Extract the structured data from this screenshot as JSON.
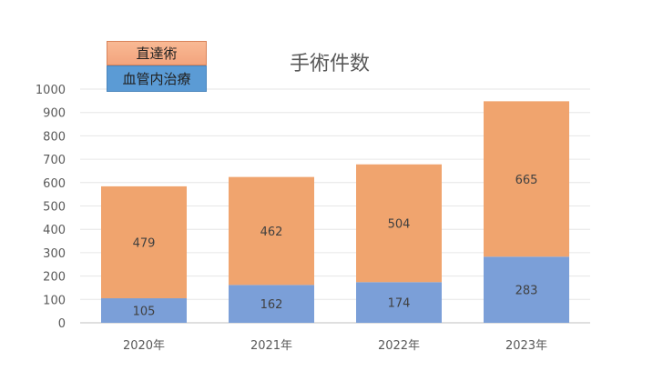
{
  "chart_data": {
    "type": "bar",
    "stacked": true,
    "title": "手術件数",
    "xlabel": "",
    "ylabel": "",
    "categories": [
      "2020年",
      "2021年",
      "2022年",
      "2023年"
    ],
    "series": [
      {
        "name": "血管内治療",
        "values": [
          105,
          162,
          174,
          283
        ],
        "color": "#7b9fd8"
      },
      {
        "name": "直達術",
        "values": [
          479,
          462,
          504,
          665
        ],
        "color": "#f0a46e"
      }
    ],
    "ylim": [
      0,
      1000
    ],
    "yticks": [
      0,
      100,
      200,
      300,
      400,
      500,
      600,
      700,
      800,
      900,
      1000
    ],
    "grid": true,
    "legend_position": "top-left"
  }
}
